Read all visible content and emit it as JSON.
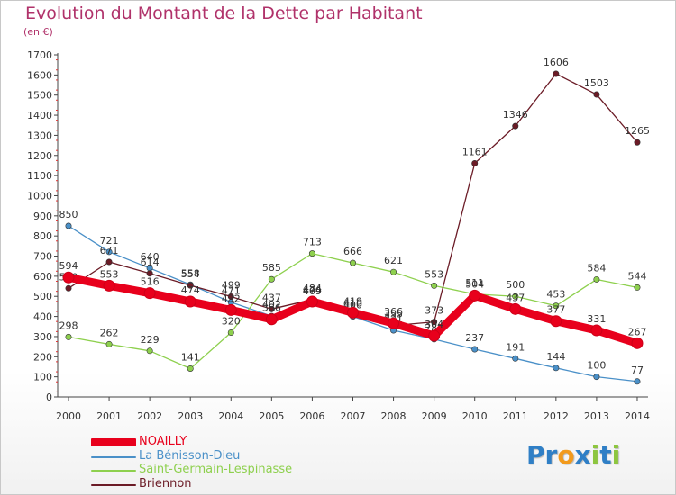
{
  "chart_data": {
    "type": "line",
    "title": "Evolution du Montant de la Dette par Habitant",
    "unit": "(en €)",
    "x": [
      "2000",
      "2001",
      "2002",
      "2003",
      "2004",
      "2005",
      "2006",
      "2007",
      "2008",
      "2009",
      "2010",
      "2011",
      "2012",
      "2013",
      "2014"
    ],
    "ylim": [
      0,
      1700
    ],
    "yticks": [
      0,
      100,
      200,
      300,
      400,
      500,
      600,
      700,
      800,
      900,
      1000,
      1100,
      1200,
      1300,
      1400,
      1500,
      1600,
      1700
    ],
    "grid": false,
    "legend_position": "bottom-left",
    "series": [
      {
        "name": "NOAILLY",
        "color": "#e8001c",
        "values": [
          594,
          553,
          516,
          474,
          432,
          386,
          474,
          419,
          366,
          304,
          504,
          437,
          377,
          331,
          267
        ]
      },
      {
        "name": "La Bénisson-Dieu",
        "color": "#4a90c8",
        "values": [
          850,
          721,
          640,
          558,
          471,
          402,
          469,
          400,
          331,
          287,
          237,
          191,
          144,
          100,
          77
        ]
      },
      {
        "name": "Saint-Germain-Lespinasse",
        "color": "#8ed04e",
        "values": [
          298,
          262,
          229,
          141,
          320,
          585,
          713,
          666,
          621,
          553,
          511,
          500,
          453,
          584,
          544
        ]
      },
      {
        "name": "Briennon",
        "color": "#6b1b26",
        "values": [
          540,
          671,
          614,
          554,
          499,
          437,
          484,
          410,
          355,
          373,
          1161,
          1346,
          1606,
          1503,
          1265
        ]
      }
    ]
  },
  "logo": {
    "letters": [
      "P",
      "r",
      "o",
      "x",
      "i",
      "t",
      "i"
    ],
    "colors": [
      "#2f7fc6",
      "#2f7fc6",
      "#f29a1c",
      "#2f7fc6",
      "#8dc63f",
      "#2f7fc6",
      "#8dc63f"
    ]
  }
}
